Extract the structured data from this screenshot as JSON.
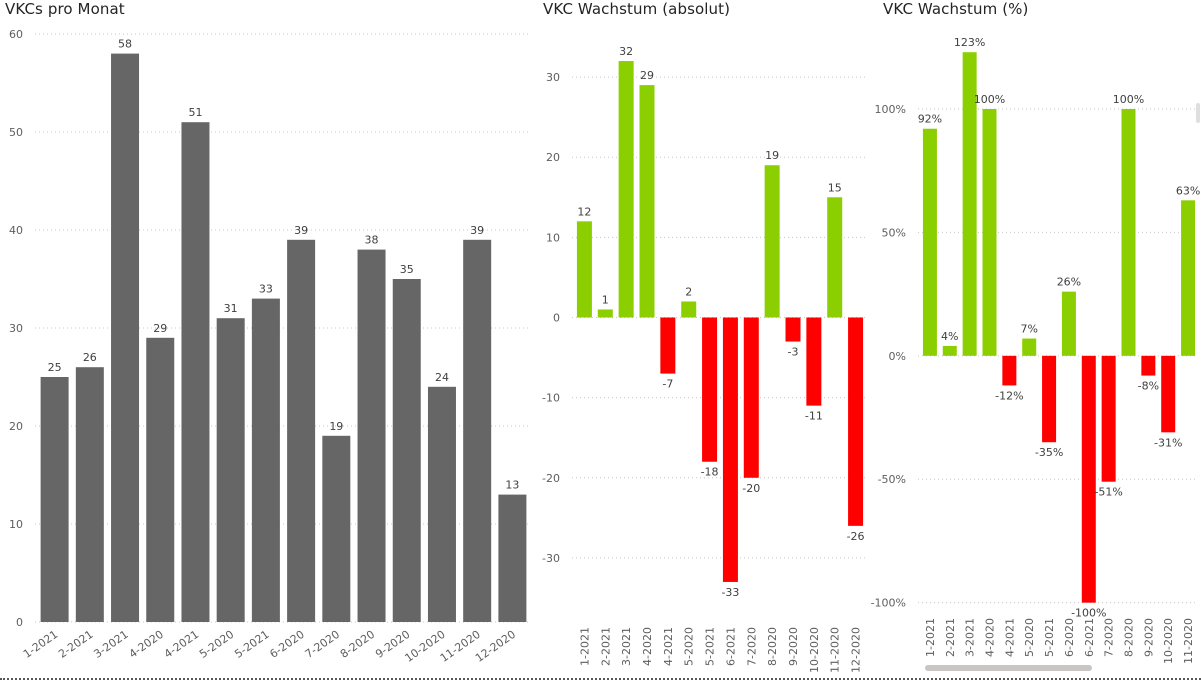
{
  "colors": {
    "bar_gray": "#666666",
    "positive": "#8CCF00",
    "negative": "#FF0000"
  },
  "chart_data": [
    {
      "id": "v1",
      "type": "bar",
      "title": "VKCs pro Monat",
      "categories": [
        "1-2021",
        "2-2021",
        "3-2021",
        "4-2020",
        "4-2021",
        "5-2020",
        "5-2021",
        "6-2020",
        "7-2020",
        "8-2020",
        "9-2020",
        "10-2020",
        "11-2020",
        "12-2020"
      ],
      "values": [
        25,
        26,
        58,
        29,
        51,
        31,
        33,
        39,
        19,
        38,
        35,
        24,
        39,
        13
      ],
      "data_labels": [
        "25",
        "26",
        "58",
        "29",
        "51",
        "31",
        "33",
        "39",
        "19",
        "38",
        "35",
        "24",
        "39",
        "13"
      ],
      "y_ticks": [
        "0",
        "10",
        "20",
        "30",
        "40",
        "50",
        "60"
      ],
      "ylim": [
        0,
        60
      ],
      "grid": true
    },
    {
      "id": "v2",
      "type": "bar",
      "title": "VKC Wachstum (absolut)",
      "categories": [
        "1-2021",
        "2-2021",
        "3-2021",
        "4-2020",
        "4-2021",
        "5-2020",
        "5-2021",
        "6-2021",
        "7-2020",
        "8-2020",
        "9-2020",
        "10-2020",
        "11-2020",
        "12-2020"
      ],
      "values": [
        12,
        1,
        32,
        29,
        -7,
        2,
        -18,
        -33,
        -20,
        19,
        -3,
        -11,
        15,
        -26
      ],
      "data_labels": [
        "12",
        "1",
        "32",
        "29",
        "-7",
        "2",
        "-18",
        "-33",
        "-20",
        "19",
        "-3",
        "-11",
        "15",
        "-26"
      ],
      "y_ticks": [
        "-30",
        "-20",
        "-10",
        "0",
        "10",
        "20",
        "30"
      ],
      "ylim": [
        -36.5,
        35.5
      ],
      "grid": true
    },
    {
      "id": "v3",
      "type": "bar",
      "title": "VKC Wachstum (%)",
      "categories": [
        "1-2021",
        "2-2021",
        "3-2021",
        "4-2020",
        "4-2021",
        "5-2020",
        "5-2021",
        "6-2020",
        "6-2021",
        "7-2020",
        "8-2020",
        "9-2020",
        "10-2020",
        "11-2020"
      ],
      "values": [
        92,
        4,
        123,
        100,
        -12,
        7,
        -35,
        26,
        -100,
        -51,
        100,
        -8,
        -31,
        63
      ],
      "data_labels": [
        "92%",
        "4%",
        "123%",
        "100%",
        "-12%",
        "7%",
        "-35%",
        "26%",
        "-100%",
        "-51%",
        "100%",
        "-8%",
        "-31%",
        "63%"
      ],
      "y_ticks": [
        "-100%",
        "-50%",
        "0%",
        "50%",
        "100%"
      ],
      "ylim": [
        -105,
        132
      ],
      "grid": true
    }
  ]
}
